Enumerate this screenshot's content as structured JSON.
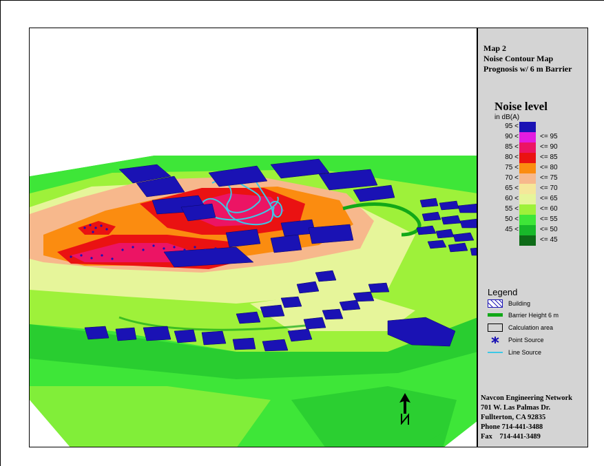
{
  "title": {
    "map": "Map 2",
    "type": "Noise Contour Map",
    "subtitle": "Prognosis w/ 6 m Barrier"
  },
  "noise_scale": {
    "title": "Noise level",
    "unit": "in dB(A)",
    "rows": [
      {
        "lo": "95 <",
        "hi": "",
        "color": "#1a12b4"
      },
      {
        "lo": "90 <",
        "hi": "<=  95",
        "color": "#e21ce0"
      },
      {
        "lo": "85 <",
        "hi": "<=  90",
        "color": "#ec1464"
      },
      {
        "lo": "80 <",
        "hi": "<=  85",
        "color": "#ea1212"
      },
      {
        "lo": "75 <",
        "hi": "<=  80",
        "color": "#fb8c10"
      },
      {
        "lo": "70 <",
        "hi": "<=  75",
        "color": "#f7b88c"
      },
      {
        "lo": "65 <",
        "hi": "<=  70",
        "color": "#f5e79a"
      },
      {
        "lo": "60 <",
        "hi": "<=  65",
        "color": "#e6f59a"
      },
      {
        "lo": "55 <",
        "hi": "<=  60",
        "color": "#9ef13a"
      },
      {
        "lo": "50 <",
        "hi": "<=  55",
        "color": "#3ee638"
      },
      {
        "lo": "45 <",
        "hi": "<=  50",
        "color": "#18b82a"
      },
      {
        "lo": "",
        "hi": "<=  45",
        "color": "#0e6b18"
      }
    ]
  },
  "legend": {
    "title": "Legend",
    "items": [
      {
        "label": "Building",
        "icon": "building-icon"
      },
      {
        "label": "Barrier Height 6 m",
        "icon": "barrier-icon"
      },
      {
        "label": "Calculation area",
        "icon": "calculation-area-icon"
      },
      {
        "label": "Point Source",
        "icon": "point-source-icon"
      },
      {
        "label": "Line Source",
        "icon": "line-source-icon"
      }
    ]
  },
  "address": {
    "company": "Navcon Engineering Network",
    "street": "701 W. Las Palmas Dr.",
    "city": "Fullterton, CA 92835",
    "phone": "Phone 714-441-3488",
    "fax": "Fax    714-441-3489"
  },
  "colors": {
    "building": "#1a12b4",
    "barrier": "#12a818",
    "line_source": "#3cc8e6",
    "point_source": "#1a12b4",
    "panel": "#d4d4d4"
  },
  "north_arrow": "north-arrow-icon"
}
